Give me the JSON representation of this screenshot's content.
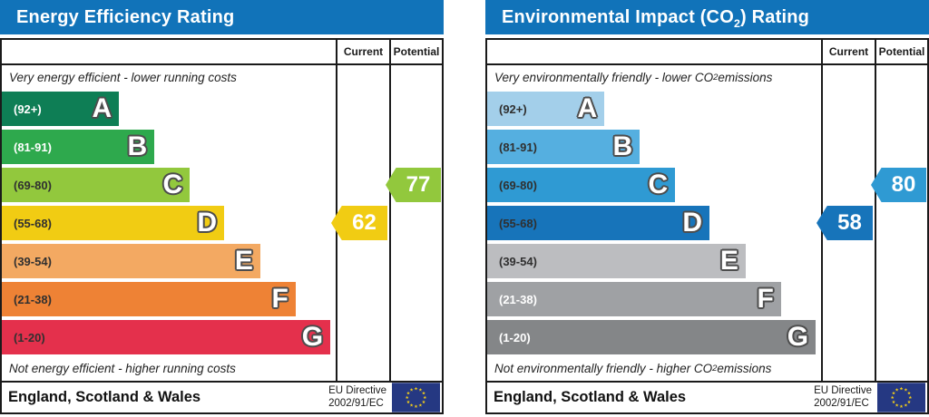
{
  "colors": {
    "header_bar": "#1173B9",
    "table_border": "#1A1A1A",
    "flag_blue": "#253882",
    "flag_star": "#F7D117"
  },
  "panels": [
    {
      "id": "energy-efficiency",
      "title_pre": "Energy Efficiency Rating",
      "title_sub": "",
      "title_post": "",
      "col_current": "Current",
      "col_potential": "Potential",
      "top_note_pre": "Very energy efficient - lower running costs",
      "top_note_sub": "",
      "top_note_post": "",
      "bottom_note_pre": "Not energy efficient - higher running costs",
      "bottom_note_sub": "",
      "bottom_note_post": "",
      "bands": [
        {
          "letter": "A",
          "range": "(92+)",
          "color": "#0E7E55",
          "text_color": "#FFFFFF",
          "width_pct": 35.1
        },
        {
          "letter": "B",
          "range": "(81-91)",
          "color": "#2EA94D",
          "text_color": "#FFFFFF",
          "width_pct": 45.7
        },
        {
          "letter": "C",
          "range": "(69-80)",
          "color": "#92C83D",
          "text_color": "#303030",
          "width_pct": 56.3
        },
        {
          "letter": "D",
          "range": "(55-68)",
          "color": "#F1CC13",
          "text_color": "#303030",
          "width_pct": 66.6
        },
        {
          "letter": "E",
          "range": "(39-54)",
          "color": "#F3A962",
          "text_color": "#303030",
          "width_pct": 77.4
        },
        {
          "letter": "F",
          "range": "(21-38)",
          "color": "#EE8235",
          "text_color": "#303030",
          "width_pct": 88.0
        },
        {
          "letter": "G",
          "range": "(1-20)",
          "color": "#E4304C",
          "text_color": "#303030",
          "width_pct": 98.4
        }
      ],
      "current": {
        "value": "62",
        "band_index": 3,
        "color": "#F1CC13"
      },
      "potential": {
        "value": "77",
        "band_index": 2,
        "color": "#92C83D"
      },
      "region": "England, Scotland & Wales",
      "directive_line1": "EU Directive",
      "directive_line2": "2002/91/EC"
    },
    {
      "id": "environmental-impact",
      "title_pre": "Environmental Impact (CO",
      "title_sub": "2",
      "title_post": ") Rating",
      "col_current": "Current",
      "col_potential": "Potential",
      "top_note_pre": "Very environmentally friendly - lower CO",
      "top_note_sub": "2",
      "top_note_post": " emissions",
      "bottom_note_pre": "Not environmentally friendly - higher CO",
      "bottom_note_sub": "2",
      "bottom_note_post": " emissions",
      "bands": [
        {
          "letter": "A",
          "range": "(92+)",
          "color": "#A3CFEA",
          "text_color": "#303030",
          "width_pct": 35.1
        },
        {
          "letter": "B",
          "range": "(81-91)",
          "color": "#55AFE0",
          "text_color": "#303030",
          "width_pct": 45.7
        },
        {
          "letter": "C",
          "range": "(69-80)",
          "color": "#2F9AD3",
          "text_color": "#303030",
          "width_pct": 56.3
        },
        {
          "letter": "D",
          "range": "(55-68)",
          "color": "#1774BA",
          "text_color": "#303030",
          "width_pct": 66.6
        },
        {
          "letter": "E",
          "range": "(39-54)",
          "color": "#BCBDC0",
          "text_color": "#303030",
          "width_pct": 77.4
        },
        {
          "letter": "F",
          "range": "(21-38)",
          "color": "#9FA1A4",
          "text_color": "#FFFFFF",
          "width_pct": 88.0
        },
        {
          "letter": "G",
          "range": "(1-20)",
          "color": "#848688",
          "text_color": "#FFFFFF",
          "width_pct": 98.4
        }
      ],
      "current": {
        "value": "58",
        "band_index": 3,
        "color": "#1774BA"
      },
      "potential": {
        "value": "80",
        "band_index": 2,
        "color": "#2F9AD3"
      },
      "region": "England, Scotland & Wales",
      "directive_line1": "EU Directive",
      "directive_line2": "2002/91/EC"
    }
  ],
  "chart_data": [
    {
      "type": "bar",
      "title": "Energy Efficiency Rating",
      "categories": [
        "A",
        "B",
        "C",
        "D",
        "E",
        "F",
        "G"
      ],
      "band_ranges": [
        "92+",
        "81-91",
        "69-80",
        "55-68",
        "39-54",
        "21-38",
        "1-20"
      ],
      "scale": [
        1,
        100
      ],
      "current": 62,
      "current_band": "D",
      "potential": 77,
      "potential_band": "C",
      "top_annotation": "Very energy efficient - lower running costs",
      "bottom_annotation": "Not energy efficient - higher running costs",
      "region": "England, Scotland & Wales",
      "directive": "EU Directive 2002/91/EC",
      "legend_position": "right-columns"
    },
    {
      "type": "bar",
      "title": "Environmental Impact (CO2) Rating",
      "categories": [
        "A",
        "B",
        "C",
        "D",
        "E",
        "F",
        "G"
      ],
      "band_ranges": [
        "92+",
        "81-91",
        "69-80",
        "55-68",
        "39-54",
        "21-38",
        "1-20"
      ],
      "scale": [
        1,
        100
      ],
      "current": 58,
      "current_band": "D",
      "potential": 80,
      "potential_band": "C",
      "top_annotation": "Very environmentally friendly - lower CO2 emissions",
      "bottom_annotation": "Not environmentally friendly - higher CO2 emissions",
      "region": "England, Scotland & Wales",
      "directive": "EU Directive 2002/91/EC",
      "legend_position": "right-columns"
    }
  ]
}
